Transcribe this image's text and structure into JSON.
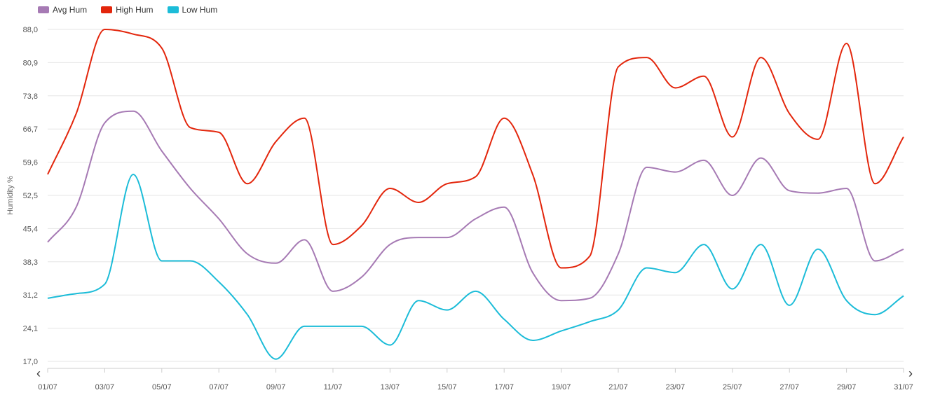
{
  "chart_data": {
    "type": "line",
    "ylabel": "Humidity %",
    "ylim": [
      17.0,
      88.0
    ],
    "yticks": [
      "88,0",
      "80,9",
      "73,8",
      "66,7",
      "59,6",
      "52,5",
      "45,4",
      "38,3",
      "31,2",
      "24,1",
      "17,0"
    ],
    "x": [
      "01/07",
      "02/07",
      "03/07",
      "04/07",
      "05/07",
      "06/07",
      "07/07",
      "08/07",
      "09/07",
      "10/07",
      "11/07",
      "12/07",
      "13/07",
      "14/07",
      "15/07",
      "16/07",
      "17/07",
      "18/07",
      "19/07",
      "20/07",
      "21/07",
      "22/07",
      "23/07",
      "24/07",
      "25/07",
      "26/07",
      "27/07",
      "28/07",
      "29/07",
      "30/07",
      "31/07"
    ],
    "xticks": [
      "01/07",
      "03/07",
      "05/07",
      "07/07",
      "09/07",
      "11/07",
      "13/07",
      "15/07",
      "17/07",
      "19/07",
      "21/07",
      "23/07",
      "25/07",
      "27/07",
      "29/07",
      "31/07"
    ],
    "series": [
      {
        "name": "Avg Hum",
        "color": "#a67ab4",
        "values": [
          42.5,
          50,
          68,
          70.5,
          62,
          54,
          47.5,
          40,
          38,
          43,
          32,
          35,
          42,
          43.5,
          43.5,
          47.5,
          50,
          36,
          30,
          30.5,
          40,
          58.5,
          57.5,
          60,
          52.5,
          60.5,
          53.5,
          53,
          54,
          38.5,
          41
        ]
      },
      {
        "name": "High Hum",
        "color": "#e3260c",
        "values": [
          57,
          70,
          88,
          87,
          84,
          67,
          66,
          55,
          64,
          69,
          42,
          46,
          54,
          51,
          55,
          56.5,
          69,
          57,
          37,
          39.5,
          80,
          82,
          75.5,
          78,
          65,
          82,
          70,
          64.5,
          85,
          55,
          65
        ]
      },
      {
        "name": "Low Hum",
        "color": "#1cbcd8",
        "values": [
          30.5,
          31.5,
          33.5,
          57,
          38.5,
          38.5,
          34,
          27,
          17.5,
          24.5,
          24.5,
          24.5,
          20.5,
          30,
          28,
          32,
          26,
          21.5,
          23.5,
          25.5,
          28,
          37,
          36,
          42,
          32.5,
          42,
          29,
          41,
          30,
          27,
          31
        ]
      }
    ],
    "legend_position": "top-left",
    "grid": true
  },
  "nav": {
    "prev": "‹",
    "next": "›"
  }
}
